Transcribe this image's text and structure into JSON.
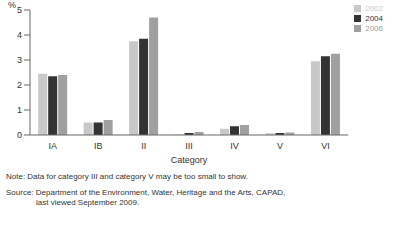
{
  "chart_data": {
    "type": "bar",
    "y_label": "%",
    "x_label": "Category",
    "categories": [
      "IA",
      "IB",
      "II",
      "III",
      "IV",
      "V",
      "VI"
    ],
    "series": [
      {
        "name": "2002",
        "color": "#c8c8c8",
        "values": [
          2.45,
          0.5,
          3.75,
          0.02,
          0.25,
          0.07,
          2.95
        ]
      },
      {
        "name": "2004",
        "color": "#333333",
        "values": [
          2.35,
          0.5,
          3.85,
          0.08,
          0.35,
          0.08,
          3.15
        ]
      },
      {
        "name": "2006",
        "color": "#a0a0a0",
        "values": [
          2.4,
          0.6,
          4.7,
          0.12,
          0.4,
          0.1,
          3.25
        ]
      }
    ],
    "ylim": [
      0,
      5
    ],
    "yticks": [
      0,
      1,
      2,
      3,
      4,
      5
    ],
    "grid": false,
    "legend": "top-right",
    "note": "Note: Data for category III and category V may be too small to show.",
    "source": [
      "Source: Department of the Environment, Water, Heritage and the Arts, CAPAD,",
      "last viewed September 2009."
    ]
  }
}
